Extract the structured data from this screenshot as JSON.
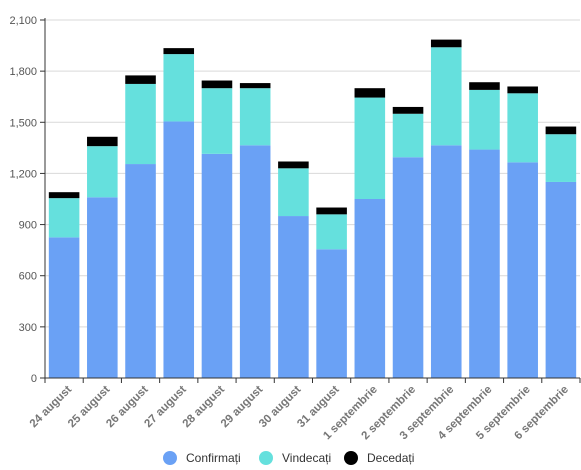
{
  "chart_data": {
    "type": "bar",
    "stacked": true,
    "categories": [
      "24 august",
      "25 august",
      "26 august",
      "27 august",
      "28 august",
      "29 august",
      "30 august",
      "31 august",
      "1 septembrie",
      "2 septembrie",
      "3 septembrie",
      "4 septembrie",
      "5 septembrie",
      "6 septembrie"
    ],
    "series": [
      {
        "name": "Confirmați",
        "color": "#6aa1f5",
        "values": [
          825,
          1060,
          1255,
          1505,
          1315,
          1365,
          950,
          755,
          1050,
          1295,
          1365,
          1340,
          1265,
          1150
        ]
      },
      {
        "name": "Vindecați",
        "color": "#65e0dd",
        "values": [
          230,
          300,
          470,
          395,
          385,
          335,
          280,
          205,
          595,
          255,
          575,
          350,
          405,
          280
        ]
      },
      {
        "name": "Decedați",
        "color": "#000000",
        "values": [
          35,
          55,
          50,
          35,
          45,
          30,
          40,
          40,
          55,
          40,
          45,
          45,
          40,
          45
        ]
      }
    ],
    "ylim": [
      0,
      2100
    ],
    "yticks": [
      "0",
      "300",
      "600",
      "900",
      "1,200",
      "1,500",
      "1,800",
      "2,100"
    ],
    "grid": true,
    "legend_position": "bottom"
  }
}
